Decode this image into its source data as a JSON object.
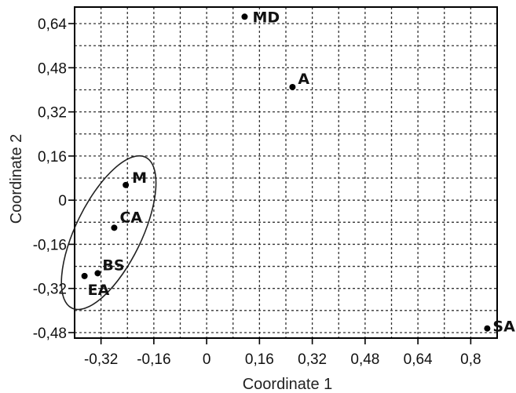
{
  "chart_data": {
    "type": "scatter",
    "xlabel": "Coordinate 1",
    "ylabel": "Coordinate 2",
    "xlim": [
      -0.4,
      0.88
    ],
    "ylim": [
      -0.5,
      0.7
    ],
    "xticks": [
      -0.32,
      -0.16,
      0,
      0.16,
      0.32,
      0.48,
      0.64,
      0.8
    ],
    "xtick_labels": [
      "-0,32",
      "-0,16",
      "0",
      "0,16",
      "0,32",
      "0,48",
      "0,64",
      "0,8"
    ],
    "yticks": [
      -0.48,
      -0.32,
      -0.16,
      0,
      0.16,
      0.32,
      0.48,
      0.64
    ],
    "ytick_labels": [
      "-0,48",
      "-0,32",
      "-0,16",
      "0",
      "0,16",
      "0,32",
      "0,48",
      "0,64"
    ],
    "grid": true,
    "points": [
      {
        "label": "MD",
        "x": 0.115,
        "y": 0.665
      },
      {
        "label": "A",
        "x": 0.26,
        "y": 0.41
      },
      {
        "label": "M",
        "x": -0.245,
        "y": 0.055
      },
      {
        "label": "CA",
        "x": -0.28,
        "y": -0.1
      },
      {
        "label": "BS",
        "x": -0.33,
        "y": -0.265
      },
      {
        "label": "EA",
        "x": -0.37,
        "y": -0.275
      },
      {
        "label": "SA",
        "x": 0.85,
        "y": -0.465
      }
    ],
    "annotation": {
      "type": "ellipse",
      "encloses": [
        "M",
        "CA",
        "BS",
        "EA"
      ]
    }
  }
}
